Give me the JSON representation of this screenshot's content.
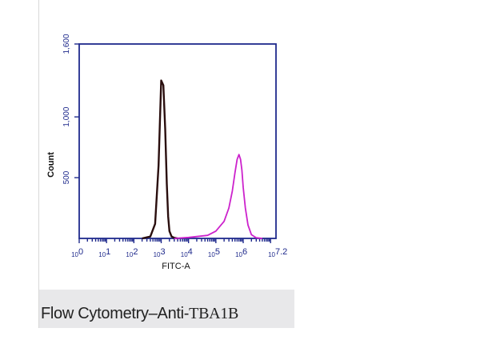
{
  "caption": {
    "prefix": "Flow Cytometry–Anti-",
    "antibody": "TBA1B"
  },
  "chart_data": {
    "type": "line",
    "title": "",
    "xlabel": "FITC-A",
    "ylabel": "Count",
    "x_scale": "log10",
    "xlim": [
      1,
      15848932
    ],
    "ylim": [
      0,
      1600
    ],
    "x_ticks": [
      {
        "base": "10",
        "exp": "0",
        "value": 1
      },
      {
        "base": "10",
        "exp": "1",
        "value": 10
      },
      {
        "base": "10",
        "exp": "2",
        "value": 100
      },
      {
        "base": "10",
        "exp": "3",
        "value": 1000
      },
      {
        "base": "10",
        "exp": "4",
        "value": 10000
      },
      {
        "base": "10",
        "exp": "5",
        "value": 100000
      },
      {
        "base": "10",
        "exp": "6",
        "value": 1000000
      },
      {
        "base": "10",
        "exp": "7.2",
        "value": 15848932
      }
    ],
    "y_ticks": [
      {
        "label": "500",
        "value": 500
      },
      {
        "label": "1,000",
        "value": 1000
      },
      {
        "label": "1,600",
        "value": 1600
      }
    ],
    "grid": false,
    "legend": "none",
    "series": [
      {
        "color": "#2a0e0e",
        "x": [
          200,
          400,
          600,
          800,
          1000,
          1200,
          1400,
          1600,
          1800,
          2000,
          2400,
          3000,
          4000
        ],
        "y": [
          0,
          15,
          120,
          600,
          1300,
          1260,
          900,
          450,
          180,
          60,
          15,
          5,
          0
        ]
      },
      {
        "color": "#cc22cc",
        "x": [
          3000,
          10000,
          50000,
          100000,
          200000,
          300000,
          400000,
          500000,
          600000,
          700000,
          800000,
          900000,
          1000000,
          1200000,
          1500000,
          2000000,
          3000000,
          5000000
        ],
        "y": [
          0,
          8,
          25,
          60,
          140,
          250,
          390,
          540,
          650,
          690,
          650,
          560,
          420,
          250,
          110,
          30,
          5,
          0
        ]
      }
    ]
  }
}
